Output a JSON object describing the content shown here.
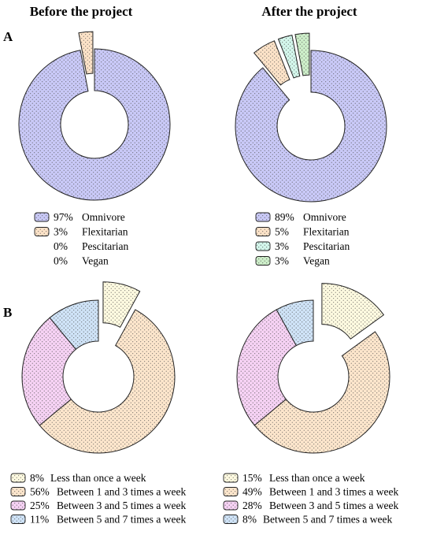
{
  "headers": {
    "before": "Before the project",
    "after": "After the project"
  },
  "panels": {
    "a": "A",
    "b": "B"
  },
  "patterns": {
    "Omnivore": "#c9c9f7",
    "Flexitarian": "#fde3c8",
    "Pescitarian": "#d4f7ec",
    "Vegan": "#cdeec9",
    "Less than once a week": "#fefae0",
    "Between 1 and 3 times a week": "#fde6cc",
    "Between 3 and 5 times a week": "#f6d2f4",
    "Between 5 and 7 times a week": "#cfe3f7"
  },
  "chart_data": [
    {
      "type": "pie",
      "subtype": "donut",
      "panel": "A",
      "title": "Before the project",
      "slices": [
        {
          "label": "Omnivore",
          "value": 97,
          "text": "97%",
          "exploded": false
        },
        {
          "label": "Flexitarian",
          "value": 3,
          "text": "3%",
          "exploded": true
        },
        {
          "label": "Pescitarian",
          "value": 0,
          "text": "0%",
          "exploded": false
        },
        {
          "label": "Vegan",
          "value": 0,
          "text": "0%",
          "exploded": false
        }
      ]
    },
    {
      "type": "pie",
      "subtype": "donut",
      "panel": "A",
      "title": "After the project",
      "slices": [
        {
          "label": "Omnivore",
          "value": 89,
          "text": "89%",
          "exploded": false
        },
        {
          "label": "Flexitarian",
          "value": 5,
          "text": "5%",
          "exploded": true
        },
        {
          "label": "Pescitarian",
          "value": 3,
          "text": "3%",
          "exploded": true
        },
        {
          "label": "Vegan",
          "value": 3,
          "text": "3%",
          "exploded": true
        }
      ]
    },
    {
      "type": "pie",
      "subtype": "donut",
      "panel": "B",
      "title": "Before the project",
      "slices": [
        {
          "label": "Less than once a week",
          "value": 8,
          "text": "8%",
          "exploded": true
        },
        {
          "label": "Between 1 and 3 times a week",
          "value": 56,
          "text": "56%",
          "exploded": false
        },
        {
          "label": "Between 3 and 5 times a week",
          "value": 25,
          "text": "25%",
          "exploded": false
        },
        {
          "label": "Between 5 and 7 times a week",
          "value": 11,
          "text": "11%",
          "exploded": false
        }
      ]
    },
    {
      "type": "pie",
      "subtype": "donut",
      "panel": "B",
      "title": "After the project",
      "slices": [
        {
          "label": "Less than once a week",
          "value": 15,
          "text": "15%",
          "exploded": true
        },
        {
          "label": "Between 1 and 3 times a week",
          "value": 49,
          "text": "49%",
          "exploded": false
        },
        {
          "label": "Between 3 and 5 times a week",
          "value": 28,
          "text": "28%",
          "exploded": false
        },
        {
          "label": "Between 5 and 7 times a week",
          "value": 8,
          "text": "8%",
          "exploded": false
        }
      ]
    }
  ]
}
